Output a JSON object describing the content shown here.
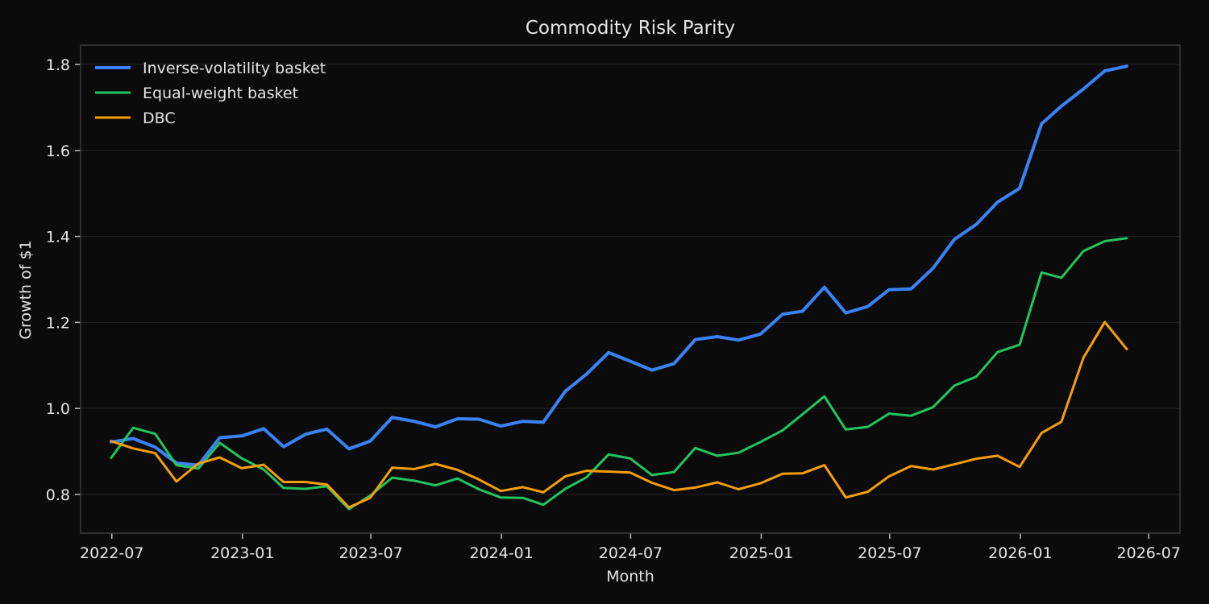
{
  "chart_data": {
    "type": "line",
    "title": "Commodity Risk Parity",
    "xlabel": "Month",
    "ylabel": "Growth of $1",
    "ylim": [
      0.71,
      1.845
    ],
    "xlim": [
      "2022-05-18",
      "2026-08-14"
    ],
    "grid": "horizontal",
    "legend_position": "top-left",
    "x_ticks": [
      "2022-07",
      "2023-01",
      "2023-07",
      "2024-01",
      "2024-07",
      "2025-01",
      "2025-07",
      "2026-01",
      "2026-07"
    ],
    "y_ticks": [
      0.8,
      1.0,
      1.2,
      1.4,
      1.6,
      1.8
    ],
    "x": [
      "2022-06-30",
      "2022-07-31",
      "2022-08-31",
      "2022-09-30",
      "2022-10-31",
      "2022-11-30",
      "2022-12-31",
      "2023-01-31",
      "2023-02-28",
      "2023-03-31",
      "2023-04-30",
      "2023-05-31",
      "2023-06-30",
      "2023-07-31",
      "2023-08-31",
      "2023-09-30",
      "2023-10-31",
      "2023-11-30",
      "2023-12-31",
      "2024-01-31",
      "2024-02-29",
      "2024-03-31",
      "2024-04-30",
      "2024-05-31",
      "2024-06-30",
      "2024-07-31",
      "2024-08-31",
      "2024-09-30",
      "2024-10-31",
      "2024-11-30",
      "2024-12-31",
      "2025-01-31",
      "2025-02-28",
      "2025-03-31",
      "2025-04-30",
      "2025-05-31",
      "2025-06-30",
      "2025-07-31",
      "2025-08-31",
      "2025-09-30",
      "2025-10-31",
      "2025-11-30",
      "2025-12-31",
      "2026-01-31",
      "2026-02-28",
      "2026-03-31",
      "2026-04-30",
      "2026-05-31"
    ],
    "series": [
      {
        "name": "Inverse-volatility basket",
        "color": "#3b82f6",
        "width": 4,
        "values": [
          0.922,
          0.93,
          0.91,
          0.873,
          0.868,
          0.932,
          0.936,
          0.953,
          0.911,
          0.94,
          0.952,
          0.906,
          0.924,
          0.979,
          0.97,
          0.957,
          0.976,
          0.975,
          0.959,
          0.97,
          0.968,
          1.04,
          1.08,
          1.13,
          1.11,
          1.089,
          1.104,
          1.16,
          1.167,
          1.159,
          1.173,
          1.219,
          1.226,
          1.282,
          1.222,
          1.237,
          1.276,
          1.278,
          1.326,
          1.393,
          1.428,
          1.48,
          1.512,
          1.662,
          1.703,
          1.743,
          1.785,
          1.796
        ]
      },
      {
        "name": "Equal-weight basket",
        "color": "#22c55e",
        "width": 3,
        "values": [
          0.885,
          0.955,
          0.941,
          0.868,
          0.86,
          0.92,
          0.884,
          0.858,
          0.815,
          0.813,
          0.819,
          0.766,
          0.797,
          0.839,
          0.832,
          0.821,
          0.837,
          0.812,
          0.793,
          0.792,
          0.776,
          0.813,
          0.84,
          0.893,
          0.884,
          0.845,
          0.852,
          0.908,
          0.89,
          0.897,
          0.922,
          0.949,
          0.986,
          1.028,
          0.951,
          0.957,
          0.988,
          0.983,
          1.003,
          1.053,
          1.074,
          1.131,
          1.148,
          1.316,
          1.304,
          1.366,
          1.389,
          1.396
        ]
      },
      {
        "name": "DBC",
        "color": "#f59e0b",
        "width": 3,
        "values": [
          0.924,
          0.907,
          0.896,
          0.83,
          0.872,
          0.886,
          0.861,
          0.869,
          0.829,
          0.829,
          0.823,
          0.77,
          0.792,
          0.862,
          0.859,
          0.871,
          0.857,
          0.835,
          0.808,
          0.817,
          0.805,
          0.842,
          0.855,
          0.853,
          0.851,
          0.827,
          0.81,
          0.816,
          0.828,
          0.812,
          0.826,
          0.848,
          0.849,
          0.868,
          0.793,
          0.806,
          0.842,
          0.866,
          0.858,
          0.87,
          0.883,
          0.89,
          0.864,
          0.943,
          0.969,
          1.118,
          1.201,
          1.138
        ]
      }
    ]
  }
}
